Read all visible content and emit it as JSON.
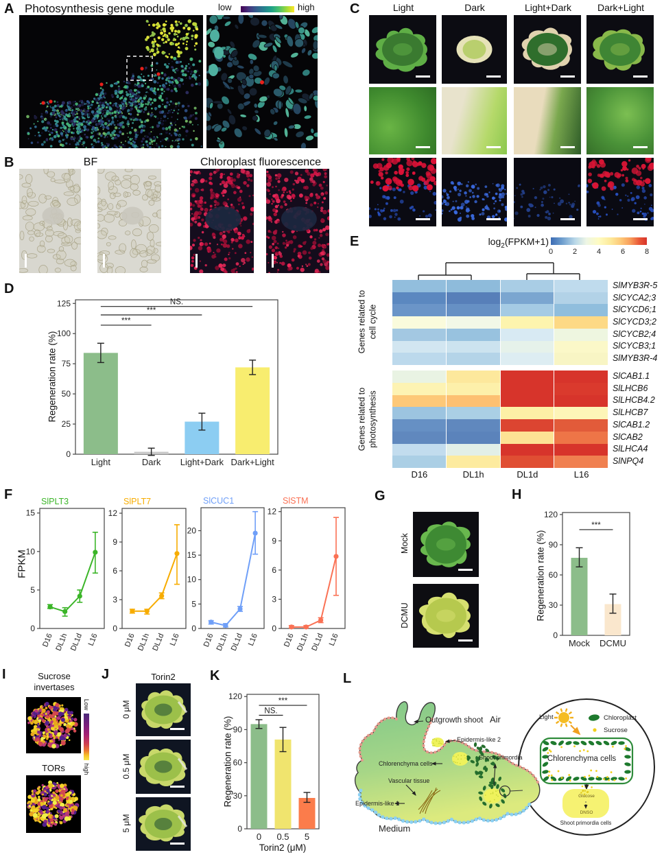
{
  "colors": {
    "green_bar": "#8cbd8a",
    "gray_bar": "#c8c8c8",
    "blue_bar": "#8ccdf2",
    "yellow_bar": "#f8ed6f",
    "peach_bar": "#fae7cd",
    "k_yellow": "#f0e46e",
    "k_orange": "#fb7c4b",
    "plt3": "#3bb528",
    "plt7": "#f7ac00",
    "cuc1": "#6f9ff8",
    "stm": "#fa7154"
  },
  "panel_a": {
    "label": "A",
    "title": "Photosynthesis gene module",
    "cbar_low": "low",
    "cbar_high": "high"
  },
  "panel_b": {
    "label": "B",
    "bf": "BF",
    "cf": "Chloroplast fluorescence"
  },
  "panel_c": {
    "label": "C",
    "cols": [
      "Light",
      "Dark",
      "Light+Dark",
      "Dark+Light"
    ]
  },
  "panel_d": {
    "label": "D"
  },
  "panel_e": {
    "label": "E",
    "cbar_prefix": "log",
    "cbar_sub": "2",
    "cbar_suffix": "(FPKM+1)",
    "group1a": "Genes related to",
    "group1b": "cell cycle",
    "group2a": "Genes related to",
    "group2b": "photosynthesis"
  },
  "panel_f": {
    "label": "F",
    "ylabel": "FPKM",
    "xcats": [
      "D16",
      "DL1h",
      "DL1d",
      "L16"
    ],
    "titles": [
      "SlPLT3",
      "SlPLT7",
      "SlCUC1",
      "SlSTM"
    ]
  },
  "panel_g": {
    "label": "G",
    "rows": [
      "Mock",
      "DCMU"
    ]
  },
  "panel_h": {
    "label": "H"
  },
  "panel_i": {
    "label": "I",
    "title1a": "Sucrose",
    "title1b": "invertases",
    "title2": "TORs",
    "cbar_top": "Low",
    "cbar_bottom": "high"
  },
  "panel_j": {
    "label": "J",
    "title": "Torin2",
    "rows": [
      "0 μM",
      "0.5 μM",
      "5 μM"
    ]
  },
  "panel_k": {
    "label": "K",
    "xlabel": "Torin2 (μM)"
  },
  "panel_l": {
    "label": "L",
    "outgrowth": "Outgrowth shoot",
    "air": "Air",
    "epi2": "Epidermis-like 2",
    "shoot_primordia": "Shoot primordia",
    "chlorenchyma": "Chlorenchyma cells",
    "vascular": "Vascular tissue",
    "epi1": "Epidermis-like 1",
    "medium": "Medium",
    "light": "Light",
    "chloroplast": "Chloroplast",
    "sucrose": "Sucrose",
    "cell_title": "Chlorenchyma cells",
    "glucose": "Glucose",
    "dnso": "DNSO",
    "spc": "Shoot primordia cells"
  },
  "chart_data": [
    {
      "id": "D",
      "type": "bar",
      "ylabel": "Regeneration rate (%)",
      "categories": [
        "Light",
        "Dark",
        "Light+Dark",
        "Dark+Light"
      ],
      "values": [
        84,
        2,
        27,
        72
      ],
      "err_low": [
        76,
        -1,
        20,
        66
      ],
      "err_high": [
        92,
        5,
        34,
        78
      ],
      "yticks": [
        0,
        25,
        50,
        75,
        100,
        125
      ],
      "ylim": [
        0,
        128
      ],
      "bar_colors": [
        "green_bar",
        "gray_bar",
        "blue_bar",
        "yellow_bar"
      ],
      "significance": [
        {
          "a": 0,
          "b": 1,
          "label": "***",
          "y": 107
        },
        {
          "a": 0,
          "b": 2,
          "label": "***",
          "y": 115.5
        },
        {
          "a": 0,
          "b": 3,
          "label": "NS.",
          "y": 122.5
        }
      ]
    },
    {
      "id": "F1",
      "type": "line",
      "title": "SlPLT3",
      "color": "plt3",
      "x": [
        "D16",
        "DL1h",
        "DL1d",
        "L16"
      ],
      "values": [
        2.8,
        2.2,
        4.2,
        9.9
      ],
      "err_low": [
        2.6,
        1.6,
        3.4,
        7.2
      ],
      "err_high": [
        3.1,
        2.7,
        5.0,
        12.5
      ],
      "yticks": [
        0,
        5,
        10,
        15
      ],
      "ylim": [
        0,
        15.6
      ]
    },
    {
      "id": "F2",
      "type": "line",
      "title": "SlPLT7",
      "color": "plt7",
      "x": [
        "D16",
        "DL1h",
        "DL1d",
        "L16"
      ],
      "values": [
        1.8,
        1.8,
        3.4,
        7.8
      ],
      "err_low": [
        1.6,
        1.5,
        3.1,
        4.6
      ],
      "err_high": [
        2.0,
        2.0,
        3.7,
        10.8
      ],
      "yticks": [
        0,
        3,
        6,
        9,
        12
      ],
      "ylim": [
        0,
        12.5
      ]
    },
    {
      "id": "F3",
      "type": "line",
      "title": "SlCUC1",
      "color": "cuc1",
      "x": [
        "D16",
        "DL1h",
        "DL1d",
        "L16"
      ],
      "values": [
        1.3,
        0.6,
        4.0,
        19.5
      ],
      "err_low": [
        0.9,
        0.3,
        3.5,
        15.2
      ],
      "err_high": [
        1.6,
        1.0,
        4.5,
        23.9
      ],
      "yticks": [
        0,
        5,
        10,
        15,
        20
      ],
      "ylim": [
        0,
        24.7
      ]
    },
    {
      "id": "F4",
      "type": "line",
      "title": "SlSTM",
      "color": "stm",
      "x": [
        "D16",
        "DL1h",
        "DL1d",
        "L16"
      ],
      "values": [
        0.15,
        0.15,
        0.85,
        7.4
      ],
      "err_low": [
        0.05,
        0.05,
        0.6,
        3.4
      ],
      "err_high": [
        0.3,
        0.3,
        1.1,
        11.4
      ],
      "yticks": [
        0,
        3,
        6,
        9,
        12
      ],
      "ylim": [
        0,
        12.4
      ]
    },
    {
      "id": "H",
      "type": "bar",
      "ylabel": "Regeneration rate (%)",
      "categories": [
        "Mock",
        "DCMU"
      ],
      "values": [
        77,
        31
      ],
      "err_low": [
        68,
        22
      ],
      "err_high": [
        87,
        41
      ],
      "yticks": [
        0,
        30,
        60,
        90,
        120
      ],
      "ylim": [
        0,
        122
      ],
      "bar_colors": [
        "green_bar",
        "peach_bar"
      ],
      "significance": [
        {
          "a": 0,
          "b": 1,
          "label": "***",
          "y": 105
        }
      ]
    },
    {
      "id": "K",
      "type": "bar",
      "ylabel": "Regeneration rate (%)",
      "xlabel": "Torin2 (μM)",
      "categories": [
        "0",
        "0.5",
        "5"
      ],
      "values": [
        95,
        81,
        28
      ],
      "err_low": [
        91,
        70,
        24
      ],
      "err_high": [
        99,
        92,
        33
      ],
      "yticks": [
        0,
        30,
        60,
        90,
        120
      ],
      "ylim": [
        0,
        122
      ],
      "bar_colors": [
        "green_bar",
        "k_yellow",
        "k_orange"
      ],
      "significance": [
        {
          "a": 0,
          "b": 1,
          "label": "NS.",
          "y": 103
        },
        {
          "a": 0,
          "b": 2,
          "label": "***",
          "y": 112
        }
      ]
    },
    {
      "id": "E",
      "type": "heatmap",
      "colorbar_ticks": [
        "0",
        "2",
        "4",
        "6",
        "8"
      ],
      "columns": [
        "D16",
        "DL1h",
        "DL1d",
        "L16"
      ],
      "genes_cell_cycle": [
        "SlMYB3R-5",
        "SlCYCA2;3",
        "SlCYCD6;1",
        "SlCYCD3;2",
        "SlCYCB2;4",
        "SlCYCB3;1",
        "SlMYB3R-4"
      ],
      "genes_photosynthesis": [
        "SlCAB1.1",
        "SlLHCB6",
        "SlLHCB4.2",
        "SlLHCB7",
        "SlCAB1.2",
        "SlCAB2",
        "SlLHCA4",
        "SlNPQ4"
      ],
      "matrix1_hex": [
        [
          "#92bedd",
          "#8ebbdb",
          "#a9cde5",
          "#bfdbed"
        ],
        [
          "#5b88c0",
          "#577fb9",
          "#7ba6d0",
          "#b2d2e7"
        ],
        [
          "#6b95c8",
          "#6690c4",
          "#a5cbe4",
          "#90bedd"
        ],
        [
          "#fafbdc",
          "#f2f8e7",
          "#fdf4ae",
          "#fdd985"
        ],
        [
          "#a3c8e2",
          "#98c2df",
          "#d8eaf3",
          "#eef6e0"
        ],
        [
          "#d2e6f1",
          "#cce3ef",
          "#e6f2ea",
          "#fbf8c8"
        ],
        [
          "#bcd9ec",
          "#b4d4e8",
          "#ddedf2",
          "#f8f5c4"
        ]
      ],
      "matrix2_hex": [
        [
          "#e9f3e3",
          "#fde89c",
          "#d7342b",
          "#d7342b"
        ],
        [
          "#fdf3b3",
          "#fdf0aa",
          "#d7342b",
          "#da3a2d"
        ],
        [
          "#fdc878",
          "#fdc072",
          "#d7342b",
          "#d7342b"
        ],
        [
          "#9cc4e0",
          "#aacfe5",
          "#fdf0a6",
          "#fdf5b8"
        ],
        [
          "#6690c4",
          "#6088be",
          "#dc4531",
          "#e25b3a"
        ],
        [
          "#6088be",
          "#5b83bb",
          "#fde294",
          "#ee7547"
        ],
        [
          "#c2dcee",
          "#e2efe8",
          "#d7342b",
          "#d7342b"
        ],
        [
          "#abcfe5",
          "#fdeb9f",
          "#e04e33",
          "#f08050"
        ]
      ]
    }
  ]
}
